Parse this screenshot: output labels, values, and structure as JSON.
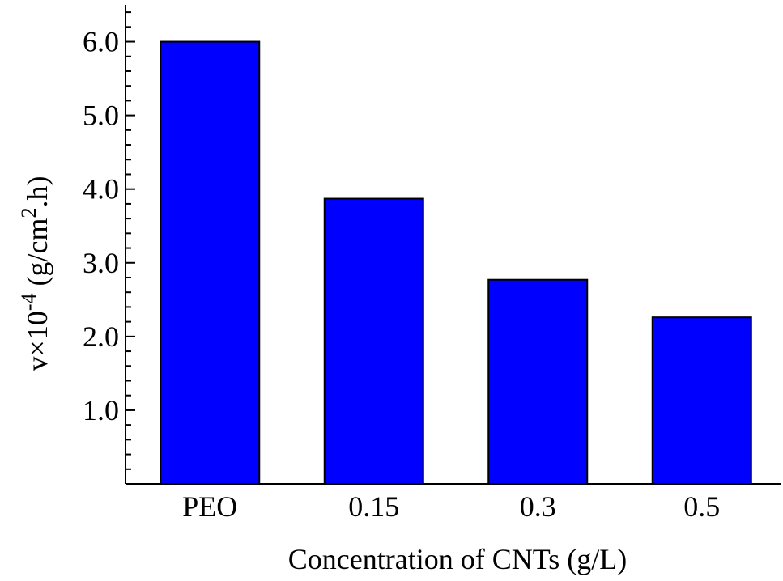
{
  "chart_data": {
    "type": "bar",
    "categories": [
      "PEO",
      "0.15",
      "0.3",
      "0.5"
    ],
    "values": [
      6.0,
      3.87,
      2.77,
      2.26
    ],
    "xlabel": "Concentration of  CNTs  (g/L)",
    "ylabel": {
      "prefix": "v×10",
      "exponent": "-4",
      "unit_open": " (g/cm",
      "unit_exponent": "2",
      "unit_close": ".h)"
    },
    "ylim": [
      0,
      6.5
    ],
    "yticks": [
      "1.0",
      "2.0",
      "3.0",
      "4.0",
      "5.0",
      "6.0"
    ],
    "bar_color": "#0000ff",
    "grid": false,
    "legend": "none"
  }
}
